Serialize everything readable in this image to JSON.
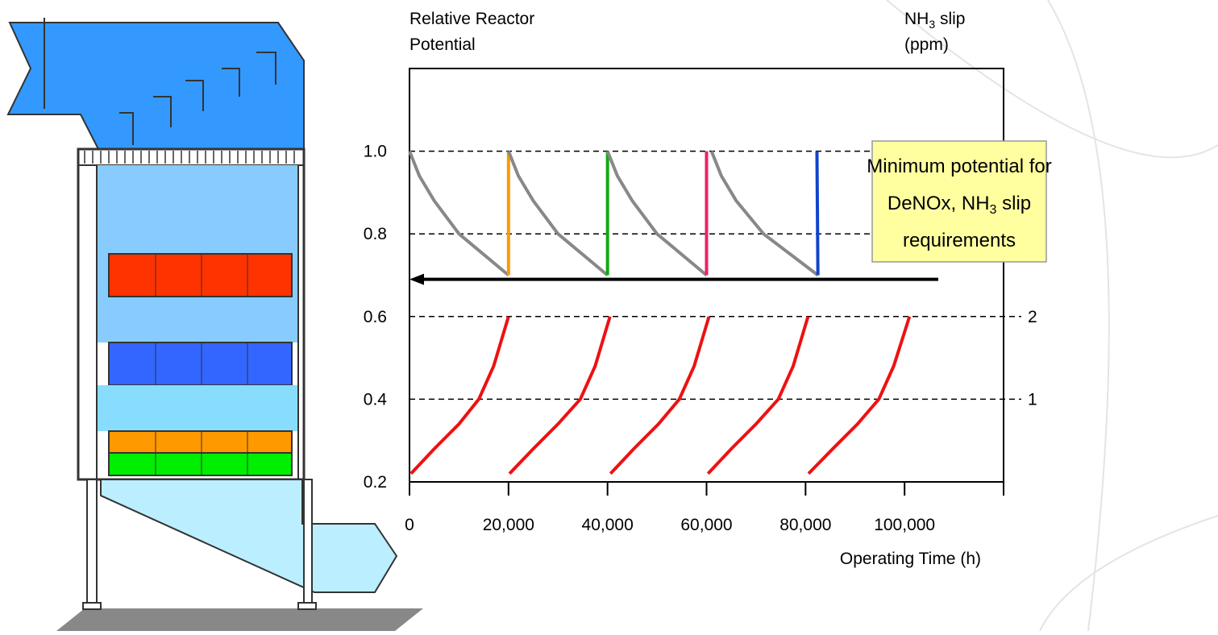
{
  "chart_data": {
    "type": "line",
    "y_label": [
      "Relative Reactor",
      "Potential"
    ],
    "y2_label": {
      "before": "NH",
      "sub": "3",
      "after": " slip",
      "line2": "(ppm)"
    },
    "x_label": "Operating Time (h)",
    "xlim": [
      0,
      120000
    ],
    "xticks": [
      0,
      {
        "value": 20000,
        "label": "20,000"
      },
      {
        "value": 40000,
        "label": "40,000"
      },
      {
        "value": 60000,
        "label": "60,000"
      },
      {
        "value": 80000,
        "label": "80,000"
      },
      {
        "value": 100000,
        "label": "100,000"
      }
    ],
    "ylim": [
      0.2,
      1.2
    ],
    "yticks": [
      {
        "value": 0.2,
        "label": "0.2"
      },
      0.4,
      0.6,
      0.8,
      {
        "value": 1.0,
        "label": "1.0"
      }
    ],
    "y2lim": [
      0,
      5
    ],
    "y2ticks": [
      1,
      2
    ],
    "grid": true,
    "series": [
      {
        "color": "#888888",
        "x": [
          0,
          2000,
          5000,
          10000,
          20000
        ],
        "values": [
          1.0,
          0.94,
          0.88,
          0.8,
          0.7
        ]
      },
      {
        "color": "#ff9900",
        "x": [
          20000,
          20000
        ],
        "values": [
          0.7,
          1.0
        ]
      },
      {
        "color": "#888888",
        "x": [
          20000,
          22000,
          25000,
          30000,
          40000
        ],
        "values": [
          1.0,
          0.94,
          0.88,
          0.8,
          0.7
        ]
      },
      {
        "color": "#11aa11",
        "x": [
          40000,
          40000
        ],
        "values": [
          0.7,
          1.0
        ]
      },
      {
        "color": "#888888",
        "x": [
          40000,
          42000,
          45000,
          50000,
          60000
        ],
        "values": [
          1.0,
          0.94,
          0.88,
          0.8,
          0.7
        ]
      },
      {
        "color": "#ee2266",
        "x": [
          60000,
          60000
        ],
        "values": [
          0.7,
          1.0
        ]
      },
      {
        "color": "#888888",
        "x": [
          61000,
          63000,
          66000,
          71500,
          82500
        ],
        "values": [
          1.0,
          0.94,
          0.88,
          0.8,
          0.7
        ]
      },
      {
        "color": "#1144cc",
        "x": [
          82500,
          82300
        ],
        "values": [
          0.7,
          1.0
        ]
      },
      {
        "color": "#ee1111",
        "x": [
          300,
          5000,
          10000,
          14000,
          17000,
          20000
        ],
        "values": [
          0.22,
          0.28,
          0.34,
          0.4,
          0.48,
          0.6
        ]
      },
      {
        "color": "#ee1111",
        "x": [
          20200,
          25000,
          30000,
          34500,
          37500,
          40500
        ],
        "values": [
          0.22,
          0.28,
          0.34,
          0.4,
          0.48,
          0.6
        ]
      },
      {
        "color": "#ee1111",
        "x": [
          40600,
          45300,
          50300,
          54500,
          57500,
          60500
        ],
        "values": [
          0.22,
          0.28,
          0.34,
          0.4,
          0.48,
          0.6
        ]
      },
      {
        "color": "#ee1111",
        "x": [
          60300,
          65000,
          70000,
          74500,
          77500,
          80500
        ],
        "values": [
          0.22,
          0.28,
          0.34,
          0.4,
          0.48,
          0.6
        ]
      },
      {
        "color": "#ee1111",
        "x": [
          80600,
          85500,
          90500,
          94800,
          97800,
          101000
        ],
        "values": [
          0.22,
          0.28,
          0.34,
          0.4,
          0.48,
          0.6
        ]
      }
    ],
    "arrow": {
      "color": "#000000",
      "x": [
        106800,
        0
      ],
      "y": 0.69
    },
    "annotation": {
      "line1": "Minimum potential for",
      "before": "DeNOx, NH",
      "sub": "3",
      "after": " slip",
      "line3": "requirements"
    }
  }
}
